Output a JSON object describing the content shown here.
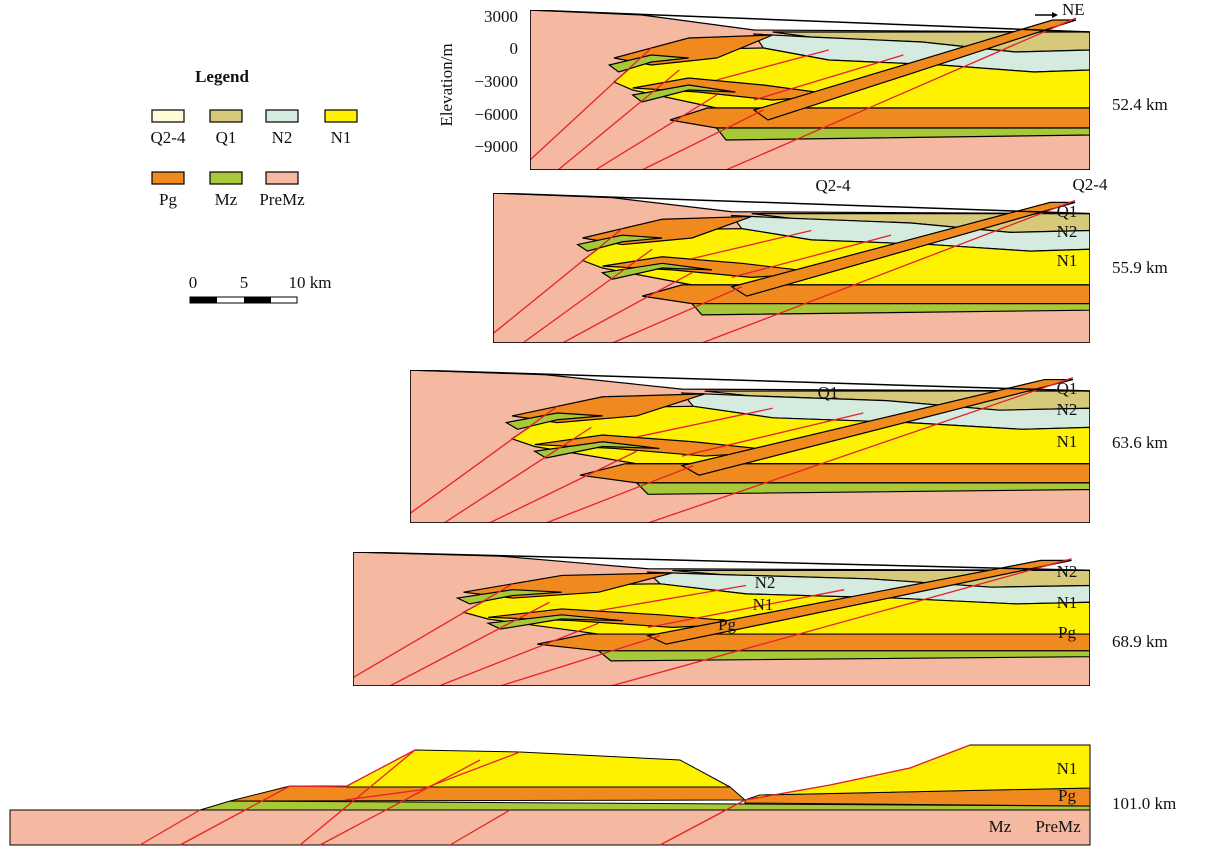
{
  "legend": {
    "title": "Legend",
    "items": [
      "Q2-4",
      "Q1",
      "N2",
      "N1",
      "Pg",
      "Mz",
      "PreMz"
    ]
  },
  "scale_bar": {
    "labels": [
      "0",
      "5",
      "10 km"
    ]
  },
  "axis": {
    "label": "Elevation/m",
    "ticks": [
      "3000",
      "0",
      "−3000",
      "−6000",
      "−9000"
    ]
  },
  "direction": "NE",
  "sections": [
    {
      "distance": "52.4 km",
      "labels": []
    },
    {
      "distance": "55.9 km",
      "labels": [
        "Q2-4",
        "Q2-4",
        "Q1",
        "N2",
        "N1"
      ]
    },
    {
      "distance": "63.6 km",
      "labels": [
        "Q1",
        "Q1",
        "N2",
        "N1"
      ]
    },
    {
      "distance": "68.9 km",
      "labels": [
        "N2",
        "N2",
        "N1",
        "N1",
        "Pg",
        "Pg"
      ]
    },
    {
      "distance": "101.0 km",
      "labels": [
        "N1",
        "Pg",
        "Mz",
        "PreMz"
      ]
    }
  ]
}
